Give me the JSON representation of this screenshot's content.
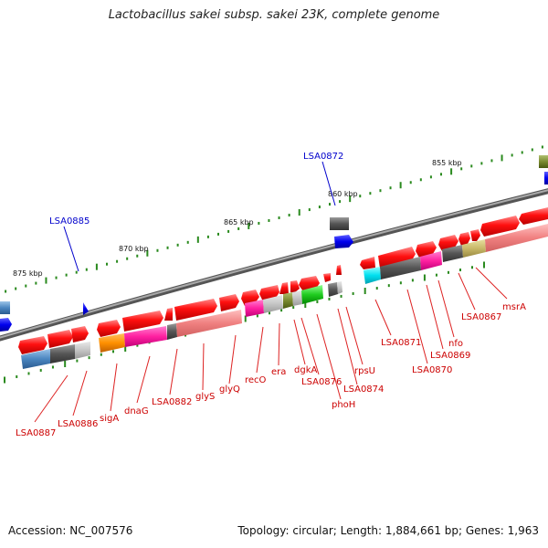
{
  "title": "Lactobacillus sakei subsp. sakei 23K, complete genome",
  "footer": {
    "accession": "Accession: NC_007576",
    "stats": "Topology: circular; Length: 1,884,661 bp; Genes: 1,963"
  },
  "colors": {
    "backbone": "#888888",
    "tick": "#2a8a1e",
    "forward_gene": "#ff1010",
    "reverse_gene": "#ff1010",
    "gene_label": "#cc0000",
    "highlight_label": "#0000cc"
  },
  "scale_labels": [
    "875 kbp",
    "870 kbp",
    "865 kbp",
    "860 kbp",
    "855 kbp"
  ],
  "gene_labels": [
    "LSA0887",
    "LSA0886",
    "sigA",
    "dnaG",
    "LSA0882",
    "glyS",
    "glyQ",
    "recO",
    "era",
    "dgkA",
    "LSA0876",
    "phoH",
    "LSA0874",
    "rpsU",
    "LSA0871",
    "LSA0870",
    "LSA0869",
    "nfo",
    "LSA0867",
    "msrA"
  ],
  "highlight_labels": [
    "LSA0885",
    "LSA0872"
  ]
}
